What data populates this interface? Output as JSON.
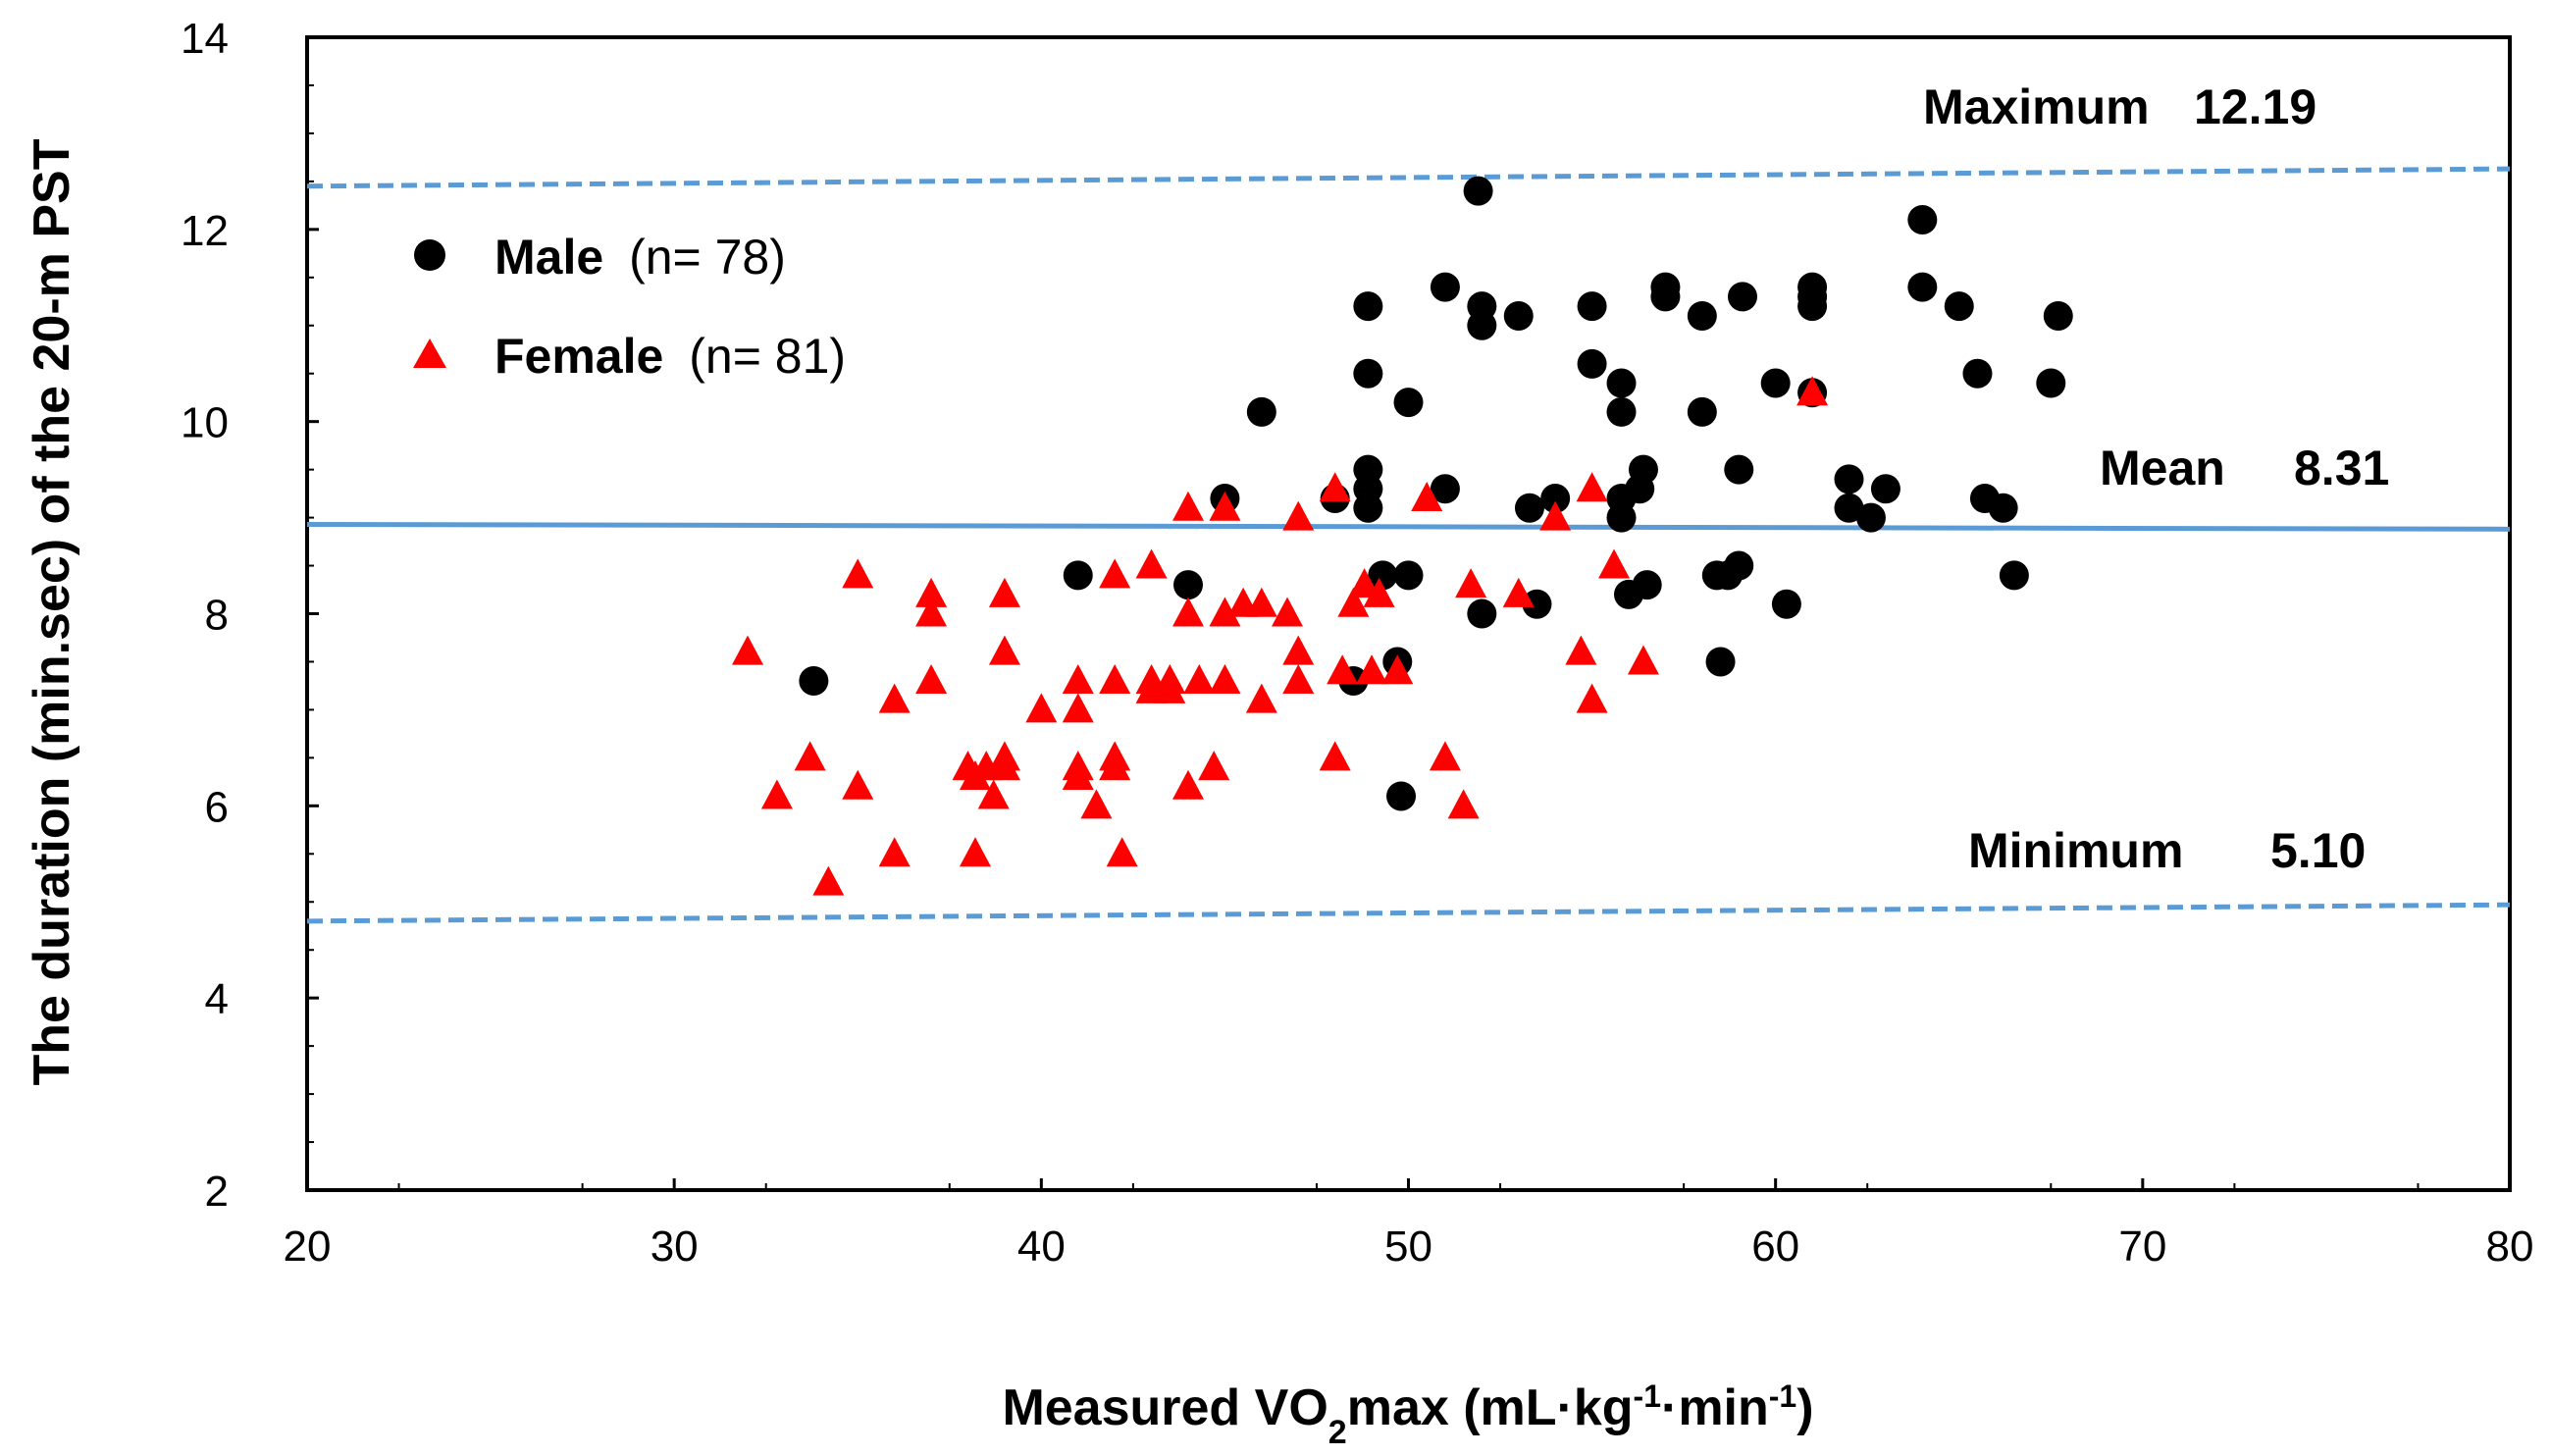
{
  "chart_data": {
    "type": "scatter",
    "title": "",
    "xlabel": {
      "main": "Measured VO",
      "sub": "2",
      "rest": "max (mL·kg",
      "sup1": "-1",
      "mid": "·min",
      "sup2": "-1",
      "end": ")"
    },
    "ylabel": "The duration (min.sec) of the 20-m PST",
    "xlim": [
      20,
      80
    ],
    "ylim": [
      2,
      14
    ],
    "xticks": [
      20,
      30,
      40,
      50,
      60,
      70,
      80
    ],
    "yticks": [
      2,
      4,
      6,
      8,
      10,
      12,
      14
    ],
    "grid": false,
    "legend": {
      "placement": "top-left"
    },
    "colors": {
      "male": "#000000",
      "female": "#ff0000",
      "line": "#5b9bd5"
    },
    "reference_lines": [
      {
        "name": "Maximum",
        "label": "Maximum",
        "value_text": "12.19",
        "style": "dashed",
        "y_start": 12.45,
        "y_end": 12.63
      },
      {
        "name": "Mean",
        "label": "Mean",
        "value_text": "8.31",
        "style": "solid",
        "y_start": 8.93,
        "y_end": 8.88
      },
      {
        "name": "Minimum",
        "label": "Minimum",
        "value_text": "5.10",
        "style": "dashed",
        "y_start": 4.8,
        "y_end": 4.97
      }
    ],
    "series": [
      {
        "name": "Male",
        "count_label": "(n= 78)",
        "marker": "circle",
        "points": [
          [
            33.8,
            7.3
          ],
          [
            41.0,
            8.4
          ],
          [
            44.0,
            8.3
          ],
          [
            45.0,
            9.2
          ],
          [
            46.0,
            10.1
          ],
          [
            48.0,
            9.2
          ],
          [
            48.5,
            7.3
          ],
          [
            48.9,
            9.5
          ],
          [
            48.9,
            9.3
          ],
          [
            48.9,
            9.1
          ],
          [
            48.9,
            10.5
          ],
          [
            48.9,
            11.2
          ],
          [
            49.3,
            8.4
          ],
          [
            49.7,
            7.5
          ],
          [
            49.8,
            6.1
          ],
          [
            50.0,
            8.4
          ],
          [
            50.0,
            10.2
          ],
          [
            51.0,
            9.3
          ],
          [
            51.0,
            11.4
          ],
          [
            51.9,
            12.4
          ],
          [
            52.0,
            11.2
          ],
          [
            52.0,
            11.0
          ],
          [
            52.0,
            8.0
          ],
          [
            53.0,
            11.1
          ],
          [
            53.3,
            9.1
          ],
          [
            53.5,
            8.1
          ],
          [
            54.0,
            9.2
          ],
          [
            55.0,
            11.2
          ],
          [
            55.0,
            10.6
          ],
          [
            55.8,
            10.4
          ],
          [
            55.8,
            10.1
          ],
          [
            55.8,
            9.2
          ],
          [
            55.8,
            9.0
          ],
          [
            56.0,
            8.2
          ],
          [
            56.5,
            8.3
          ],
          [
            56.4,
            9.5
          ],
          [
            56.3,
            9.3
          ],
          [
            57.0,
            11.4
          ],
          [
            57.0,
            11.3
          ],
          [
            58.0,
            11.1
          ],
          [
            58.0,
            10.1
          ],
          [
            58.4,
            8.4
          ],
          [
            58.5,
            7.5
          ],
          [
            58.7,
            8.4
          ],
          [
            59.0,
            9.5
          ],
          [
            59.0,
            8.5
          ],
          [
            59.1,
            11.3
          ],
          [
            60.0,
            10.4
          ],
          [
            60.3,
            8.1
          ],
          [
            61.0,
            11.4
          ],
          [
            61.0,
            11.3
          ],
          [
            61.0,
            11.2
          ],
          [
            61.0,
            10.3
          ],
          [
            62.0,
            9.4
          ],
          [
            62.0,
            9.1
          ],
          [
            62.6,
            9.0
          ],
          [
            63.0,
            9.3
          ],
          [
            64.0,
            12.1
          ],
          [
            64.0,
            11.4
          ],
          [
            65.0,
            11.2
          ],
          [
            65.5,
            10.5
          ],
          [
            65.7,
            9.2
          ],
          [
            66.2,
            9.1
          ],
          [
            66.5,
            8.4
          ],
          [
            67.5,
            10.4
          ],
          [
            67.7,
            11.1
          ]
        ]
      },
      {
        "name": "Female",
        "count_label": "(n= 81)",
        "marker": "triangle",
        "points": [
          [
            32.0,
            7.6
          ],
          [
            32.8,
            6.1
          ],
          [
            33.7,
            6.5
          ],
          [
            34.2,
            5.2
          ],
          [
            35.0,
            8.4
          ],
          [
            35.0,
            6.2
          ],
          [
            36.0,
            7.1
          ],
          [
            36.0,
            5.5
          ],
          [
            37.0,
            8.2
          ],
          [
            37.0,
            8.0
          ],
          [
            37.0,
            7.3
          ],
          [
            38.0,
            6.4
          ],
          [
            38.2,
            6.3
          ],
          [
            38.2,
            5.5
          ],
          [
            38.5,
            6.4
          ],
          [
            38.7,
            6.1
          ],
          [
            39.0,
            8.2
          ],
          [
            39.0,
            7.6
          ],
          [
            39.0,
            6.5
          ],
          [
            39.0,
            6.4
          ],
          [
            40.0,
            7.0
          ],
          [
            41.0,
            7.3
          ],
          [
            41.0,
            7.0
          ],
          [
            41.0,
            6.4
          ],
          [
            41.0,
            6.3
          ],
          [
            41.5,
            6.0
          ],
          [
            42.0,
            8.4
          ],
          [
            42.0,
            7.3
          ],
          [
            42.0,
            6.5
          ],
          [
            42.0,
            6.4
          ],
          [
            42.2,
            5.5
          ],
          [
            43.0,
            8.5
          ],
          [
            43.0,
            7.3
          ],
          [
            43.0,
            7.2
          ],
          [
            43.5,
            7.3
          ],
          [
            43.5,
            7.2
          ],
          [
            44.0,
            9.1
          ],
          [
            44.0,
            8.0
          ],
          [
            44.0,
            6.2
          ],
          [
            44.3,
            7.3
          ],
          [
            44.7,
            6.4
          ],
          [
            45.0,
            9.1
          ],
          [
            45.0,
            8.0
          ],
          [
            45.0,
            7.3
          ],
          [
            45.5,
            8.1
          ],
          [
            46.0,
            8.1
          ],
          [
            46.0,
            7.1
          ],
          [
            46.7,
            8.0
          ],
          [
            47.0,
            9.0
          ],
          [
            47.0,
            7.6
          ],
          [
            47.0,
            7.3
          ],
          [
            48.0,
            9.3
          ],
          [
            48.0,
            6.5
          ],
          [
            48.2,
            7.4
          ],
          [
            48.5,
            8.1
          ],
          [
            48.8,
            8.3
          ],
          [
            49.0,
            7.4
          ],
          [
            49.2,
            8.2
          ],
          [
            49.7,
            7.4
          ],
          [
            50.5,
            9.2
          ],
          [
            51.0,
            6.5
          ],
          [
            51.5,
            6.0
          ],
          [
            51.7,
            8.3
          ],
          [
            53.0,
            8.2
          ],
          [
            54.0,
            9.0
          ],
          [
            54.7,
            7.6
          ],
          [
            55.0,
            9.3
          ],
          [
            55.0,
            7.1
          ],
          [
            55.6,
            8.5
          ],
          [
            56.4,
            7.5
          ],
          [
            61.0,
            10.3
          ]
        ]
      }
    ]
  }
}
